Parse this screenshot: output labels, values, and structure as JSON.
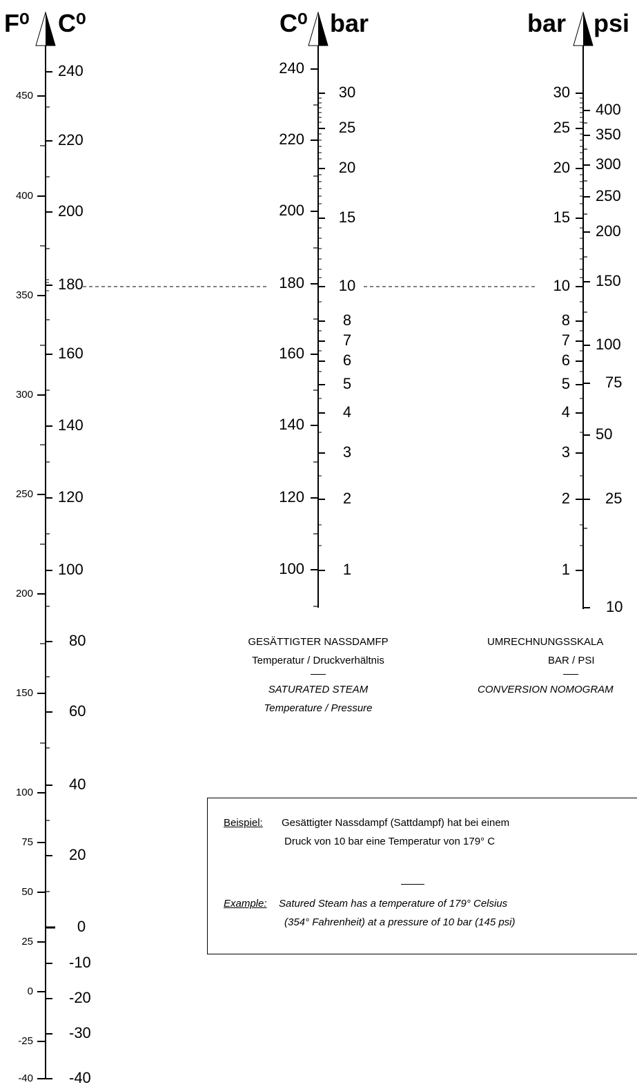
{
  "headers": {
    "fahrenheit": "F⁰",
    "celsius": "C⁰",
    "celsius2": "C⁰",
    "bar": "bar",
    "bar2": "bar",
    "psi": "psi"
  },
  "scales": {
    "fahrenheit_labels": [
      "450",
      "400",
      "350",
      "300",
      "250",
      "200",
      "150",
      "100",
      "75",
      "50",
      "25",
      "0",
      "-25",
      "-40"
    ],
    "celsius_labels": [
      "240",
      "220",
      "200",
      "180",
      "160",
      "140",
      "120",
      "100",
      "80",
      "60",
      "40",
      "20",
      "0",
      "-10",
      "-20",
      "-30",
      "-40"
    ],
    "steam_celsius_labels": [
      "240",
      "220",
      "200",
      "180",
      "160",
      "140",
      "120",
      "100"
    ],
    "steam_bar_labels": [
      "30",
      "25",
      "20",
      "15",
      "10",
      "8",
      "7",
      "6",
      "5",
      "4",
      "3",
      "2",
      "1"
    ],
    "conv_bar_labels": [
      "30",
      "25",
      "20",
      "15",
      "10",
      "8",
      "7",
      "6",
      "5",
      "4",
      "3",
      "2",
      "1"
    ],
    "conv_psi_labels": [
      "400",
      "350",
      "300",
      "250",
      "200",
      "150",
      "100",
      "75",
      "50",
      "25",
      "10"
    ]
  },
  "captions": {
    "steam_de_title": "GESÄTTIGTER NASSDAMFP",
    "steam_de_sub": "Temperatur / Druckverhältnis",
    "steam_en_title": "SATURATED STEAM",
    "steam_en_sub": "Temperature / Pressure",
    "conv_de_title": "UMRECHNUNGSSKALA",
    "conv_de_sub": "BAR / PSI",
    "conv_en_title": "CONVERSION  NOMOGRAM"
  },
  "example": {
    "de_label": "Beispiel:",
    "de_line1": "Gesättigter Nassdampf (Sattdampf) hat bei einem",
    "de_line2": "Druck von 10 bar eine Temperatur von 179° C",
    "en_label": "Example:",
    "en_line1": "Satured Steam has a temperature of 179° Celsius",
    "en_line2": "(354°  Fahrenheit) at a pressure of 10 bar (145 psi)"
  }
}
